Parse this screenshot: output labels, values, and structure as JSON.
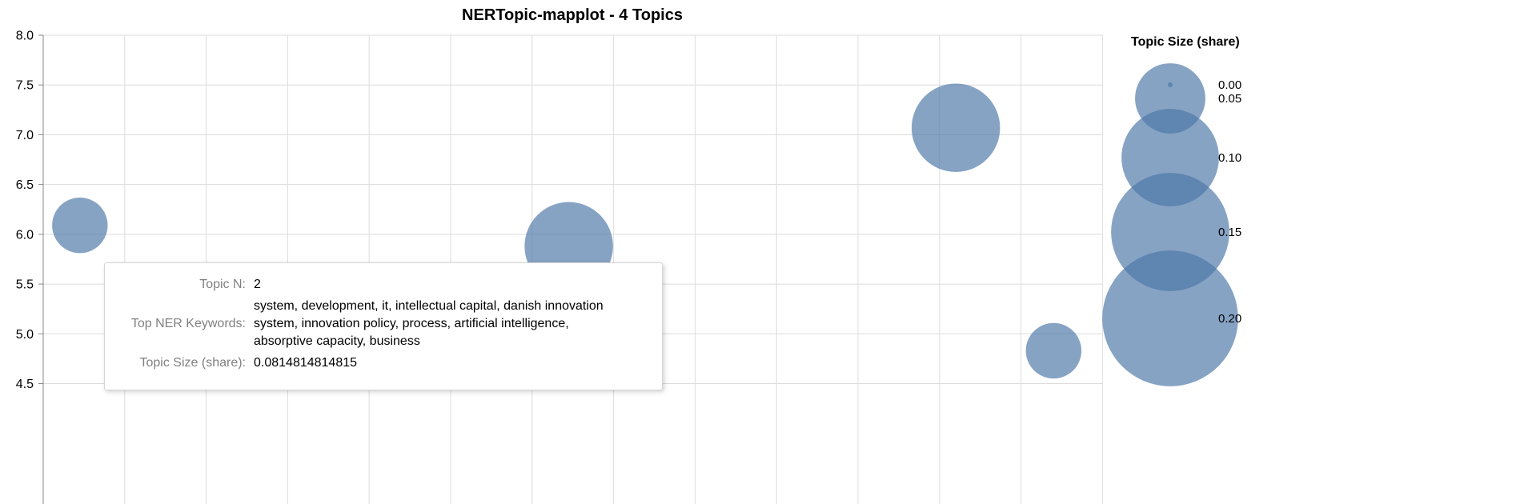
{
  "chart_data": {
    "type": "scatter",
    "title": "NERTopic-mapplot - 4 Topics",
    "xlabel": "",
    "ylabel": "",
    "ylim": [
      4.5,
      8.0
    ],
    "yticks": [
      "8.0",
      "7.5",
      "7.0",
      "6.5",
      "6.0",
      "5.5",
      "5.0",
      "4.5"
    ],
    "grid": true,
    "points": [
      {
        "topic": 0,
        "x": 0.45,
        "y": 6.09,
        "size": 0.03
      },
      {
        "topic": 2,
        "x": 6.45,
        "y": 5.88,
        "size": 0.0814814814815
      },
      {
        "topic": 1,
        "x": 11.2,
        "y": 7.07,
        "size": 0.0814814814815
      },
      {
        "topic": 3,
        "x": 12.4,
        "y": 4.83,
        "size": 0.03
      }
    ],
    "marker_color": "#4c78a8",
    "legend": {
      "title": "Topic Size (share)",
      "placement": "right",
      "entries": [
        {
          "label": "0.00",
          "value": 0.0
        },
        {
          "label": "0.05",
          "value": 0.05
        },
        {
          "label": "0.10",
          "value": 0.1
        },
        {
          "label": "0.15",
          "value": 0.15
        },
        {
          "label": "0.20",
          "value": 0.2
        }
      ]
    }
  },
  "tooltip": {
    "topic_n_label": "Topic N:",
    "topic_n_value": "2",
    "keywords_label": "Top NER Keywords:",
    "keywords_value": "system, development, it, intellectual capital, danish innovation system, innovation policy, process, artificial intelligence, absorptive capacity, business",
    "size_label": "Topic Size (share):",
    "size_value": "0.0814814814815"
  }
}
